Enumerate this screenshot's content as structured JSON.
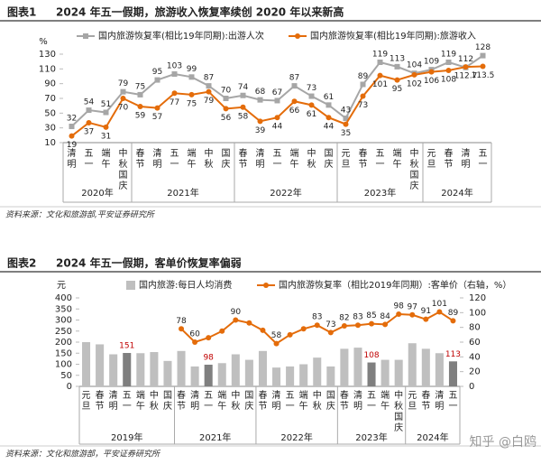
{
  "chart_data": [
    {
      "type": "line",
      "label": "图表1",
      "title": "2024 年五一假期，旅游收入恢复率续创 2020 年以来新高",
      "y_unit": "%",
      "category_groups": [
        {
          "label": "2020年",
          "categories": [
            "清明",
            "五一",
            "端午",
            "中秋国庆"
          ]
        },
        {
          "label": "2021年",
          "categories": [
            "春节",
            "清明",
            "五一",
            "端午",
            "中秋",
            "国庆"
          ]
        },
        {
          "label": "2022年",
          "categories": [
            "春节",
            "清明",
            "五一",
            "端午",
            "中秋",
            "国庆"
          ]
        },
        {
          "label": "2023年",
          "categories": [
            "元旦",
            "春节",
            "五一",
            "端午",
            "中秋国庆"
          ]
        },
        {
          "label": "2024年",
          "categories": [
            "元旦",
            "春节",
            "清明",
            "五一"
          ]
        }
      ],
      "series": [
        {
          "name": "国内旅游恢复率(相比19年同期):出游人次",
          "color": "#a6a6a6",
          "marker": "square",
          "values": [
            32,
            54,
            51,
            79,
            75,
            95,
            103,
            99,
            87,
            70,
            74,
            68,
            67,
            87,
            73,
            61,
            43,
            89,
            119,
            113,
            104,
            109,
            119,
            112,
            128
          ]
        },
        {
          "name": "国内旅游恢复率(相比19年同期):旅游收入",
          "color": "#e46c0a",
          "marker": "circle",
          "values": [
            19,
            37,
            31,
            70,
            59,
            57,
            77,
            75,
            79,
            56,
            58,
            39,
            44,
            66,
            61,
            44,
            35,
            73,
            101,
            95,
            102,
            106,
            108,
            112.7,
            113.5
          ]
        }
      ],
      "ylim": [
        10,
        130
      ],
      "yticks": [
        10,
        30,
        50,
        70,
        90,
        110,
        130
      ],
      "grid": false,
      "source": "资料来源：文化和旅游部,平安证券研究所"
    },
    {
      "type": "bar",
      "label": "图表2",
      "title": "2024 年五一假期，客单价恢复率偏弱",
      "y_unit": "元",
      "category_groups": [
        {
          "label": "2019年",
          "categories": [
            "元旦",
            "春节",
            "清明",
            "五一",
            "端午",
            "中秋",
            "国庆"
          ]
        },
        {
          "label": "2021年",
          "categories": [
            "春节",
            "清明",
            "五一",
            "端午",
            "中秋",
            "国庆"
          ]
        },
        {
          "label": "2022年",
          "categories": [
            "春节",
            "清明",
            "五一",
            "端午",
            "中秋",
            "国庆"
          ]
        },
        {
          "label": "2023年",
          "categories": [
            "春节",
            "清明",
            "五一",
            "端午",
            "中秋国庆"
          ]
        },
        {
          "label": "2024年",
          "categories": [
            "元旦",
            "春节",
            "清明",
            "五一"
          ]
        }
      ],
      "series": [
        {
          "name": "国内旅游:每日人均消费",
          "type": "bar",
          "color": "#bfbfbf",
          "label_color": "#c00000",
          "colors": [
            "#bfbfbf",
            "#bfbfbf",
            "#bfbfbf",
            "#7f7f7f",
            "#bfbfbf",
            "#bfbfbf",
            "#bfbfbf",
            "#bfbfbf",
            "#bfbfbf",
            "#7f7f7f",
            "#bfbfbf",
            "#bfbfbf",
            "#bfbfbf",
            "#bfbfbf",
            "#bfbfbf",
            "#bfbfbf",
            "#bfbfbf",
            "#bfbfbf",
            "#bfbfbf",
            "#bfbfbf",
            "#bfbfbf",
            "#7f7f7f",
            "#bfbfbf",
            "#bfbfbf",
            "#bfbfbf",
            "#bfbfbf",
            "#bfbfbf",
            "#7f7f7f"
          ],
          "values": [
            200,
            190,
            145,
            151,
            150,
            155,
            115,
            160,
            90,
            98,
            105,
            145,
            120,
            160,
            85,
            90,
            100,
            130,
            90,
            170,
            175,
            108,
            120,
            120,
            195,
            170,
            150,
            113
          ],
          "value_labels": [
            null,
            null,
            null,
            "151",
            null,
            null,
            null,
            null,
            null,
            "98",
            null,
            null,
            null,
            null,
            null,
            null,
            null,
            null,
            null,
            null,
            null,
            "108",
            null,
            null,
            null,
            null,
            null,
            "113"
          ]
        },
        {
          "name": "国内旅游恢复率（相比2019年同期）:客单价（右轴，%）",
          "type": "line",
          "axis": "y2",
          "color": "#e46c0a",
          "values": [
            null,
            null,
            null,
            null,
            null,
            null,
            null,
            78,
            60,
            66,
            75,
            90,
            86,
            76,
            58,
            70,
            78,
            83,
            73,
            82,
            83,
            85,
            84,
            98,
            97,
            91,
            101,
            89
          ],
          "value_labels": [
            null,
            null,
            null,
            null,
            null,
            null,
            null,
            "78",
            "60",
            null,
            null,
            "90",
            null,
            null,
            "58",
            null,
            null,
            "83",
            "73",
            "82",
            "83",
            "85",
            "84",
            "98",
            "97",
            "91",
            "101",
            "89"
          ]
        }
      ],
      "ylim": [
        0,
        400
      ],
      "yticks": [
        0,
        50,
        100,
        150,
        200,
        250,
        300,
        350,
        400
      ],
      "y2lim": [
        0,
        120
      ],
      "y2ticks": [
        0,
        20,
        40,
        60,
        80,
        100,
        120
      ],
      "grid": false,
      "source": "资料来源：文化和旅游部，平安证券研究所"
    }
  ],
  "watermark": "知乎 @白鸥"
}
